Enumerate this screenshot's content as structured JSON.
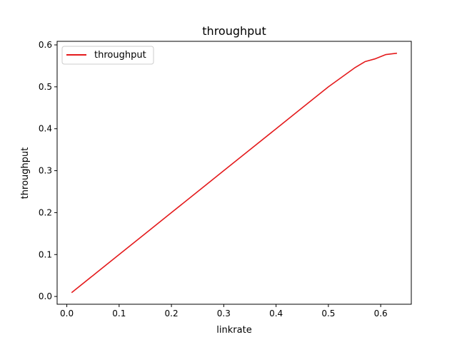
{
  "chart_data": {
    "type": "line",
    "title": "throughput",
    "xlabel": "linkrate",
    "ylabel": "throughput",
    "xlim": [
      -0.0185,
      0.6585
    ],
    "ylim": [
      -0.0185,
      0.6085
    ],
    "xticks": [
      0.0,
      0.1,
      0.2,
      0.3,
      0.4,
      0.5,
      0.6
    ],
    "xtick_labels": [
      "0.0",
      "0.1",
      "0.2",
      "0.3",
      "0.4",
      "0.5",
      "0.6"
    ],
    "yticks": [
      0.0,
      0.1,
      0.2,
      0.3,
      0.4,
      0.5,
      0.6
    ],
    "ytick_labels": [
      "0.0",
      "0.1",
      "0.2",
      "0.3",
      "0.4",
      "0.5",
      "0.6"
    ],
    "grid": false,
    "legend_position": "top-left",
    "series": [
      {
        "name": "throughput",
        "color": "#e41a1c",
        "x": [
          0.01,
          0.05,
          0.1,
          0.15,
          0.2,
          0.25,
          0.3,
          0.35,
          0.4,
          0.45,
          0.5,
          0.55,
          0.57,
          0.59,
          0.61,
          0.63
        ],
        "y": [
          0.01,
          0.05,
          0.1,
          0.15,
          0.2,
          0.25,
          0.3,
          0.35,
          0.4,
          0.45,
          0.5,
          0.545,
          0.56,
          0.567,
          0.577,
          0.58
        ]
      }
    ]
  }
}
